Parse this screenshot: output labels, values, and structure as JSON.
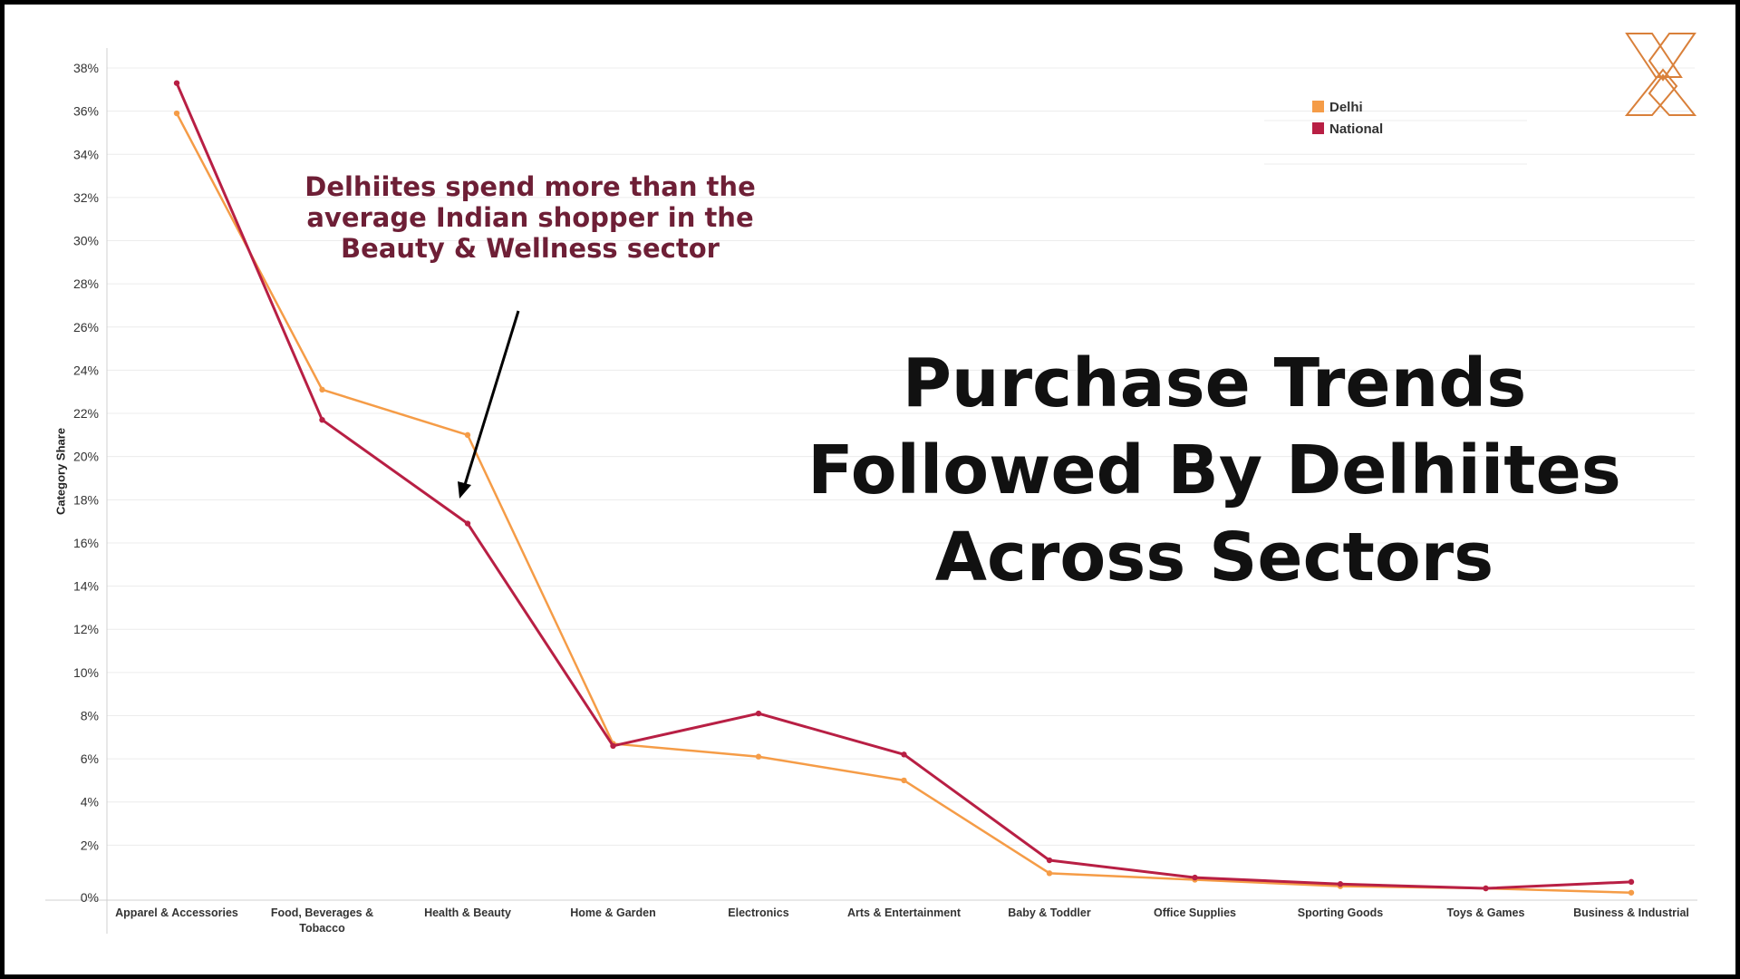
{
  "chart_data": {
    "type": "line",
    "categories": [
      "Apparel & Accessories",
      "Food, Beverages & Tobacco",
      "Health & Beauty",
      "Home & Garden",
      "Electronics",
      "Arts & Entertainment",
      "Baby & Toddler",
      "Office Supplies",
      "Sporting Goods",
      "Toys & Games",
      "Business & Industrial"
    ],
    "series": [
      {
        "name": "Delhi",
        "color": "#f59c47",
        "values": [
          35.9,
          23.1,
          21.0,
          6.7,
          6.1,
          5.0,
          0.7,
          0.4,
          0.1,
          0.0,
          -0.2
        ]
      },
      {
        "name": "National",
        "color": "#b81f44",
        "values": [
          37.3,
          21.7,
          16.9,
          6.6,
          8.1,
          6.2,
          1.3,
          0.5,
          0.2,
          0.0,
          0.3
        ]
      }
    ],
    "ylabel": "Category Share",
    "xlabel": "",
    "ylim": [
      -0.5,
      38
    ],
    "yticks": [
      "0%",
      "2%",
      "4%",
      "6%",
      "8%",
      "10%",
      "12%",
      "14%",
      "16%",
      "18%",
      "20%",
      "22%",
      "24%",
      "26%",
      "28%",
      "30%",
      "32%",
      "34%",
      "36%",
      "38%"
    ],
    "legend": {
      "position": "top-right",
      "entries": [
        "Delhi",
        "National"
      ]
    },
    "grid": true
  },
  "title": {
    "line1": "Purchase Trends",
    "line2": "Followed By Delhiites",
    "line3": "Across Sectors"
  },
  "annotation": {
    "line1": "Delhiites spend more than the",
    "line2": "average Indian shopper in the",
    "line3": "Beauty & Wellness sector"
  },
  "logo": {
    "name": "x-logo-icon",
    "color": "#d9803a"
  }
}
